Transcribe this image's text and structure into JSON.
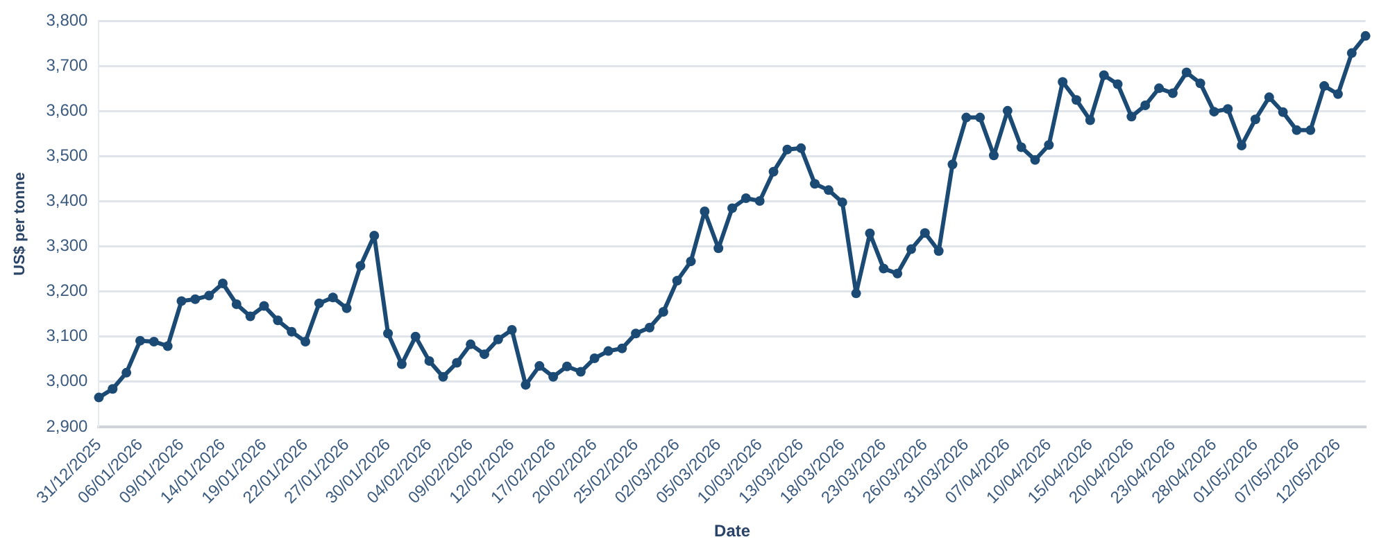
{
  "chart_data": {
    "type": "line",
    "xlabel": "Date",
    "ylabel": "US$ per tonne",
    "categories": [
      "31/12/2025",
      null,
      null,
      "06/01/2026",
      null,
      null,
      "09/01/2026",
      null,
      null,
      "14/01/2026",
      null,
      null,
      "19/01/2026",
      null,
      null,
      "22/01/2026",
      null,
      null,
      "27/01/2026",
      null,
      null,
      "30/01/2026",
      null,
      null,
      "04/02/2026",
      null,
      null,
      "09/02/2026",
      null,
      null,
      "12/02/2026",
      null,
      null,
      "17/02/2026",
      null,
      null,
      "20/02/2026",
      null,
      null,
      "25/02/2026",
      null,
      null,
      "02/03/2026",
      null,
      null,
      "05/03/2026",
      null,
      null,
      "10/03/2026",
      null,
      null,
      "13/03/2026",
      null,
      null,
      "18/03/2026",
      null,
      null,
      "23/03/2026",
      null,
      null,
      "26/03/2026",
      null,
      null,
      "31/03/2026",
      null,
      null,
      "07/04/2026",
      null,
      null,
      "10/04/2026",
      null,
      null,
      "15/04/2026",
      null,
      null,
      "20/04/2026",
      null,
      null,
      "23/04/2026",
      null,
      null,
      "28/04/2026",
      null,
      null,
      "01/05/2026",
      null,
      null,
      "07/05/2026",
      null,
      null,
      "12/05/2026",
      null,
      null
    ],
    "series": [
      {
        "color": "#1b4a74",
        "values": [
          2965,
          2984,
          3020,
          3091,
          3089,
          3079,
          3179,
          3183,
          3191,
          3218,
          3172,
          3145,
          3168,
          3136,
          3111,
          3089,
          3174,
          3187,
          3163,
          3257,
          3324,
          3107,
          3039,
          3100,
          3046,
          3011,
          3042,
          3083,
          3061,
          3094,
          3115,
          2993,
          3035,
          3011,
          3034,
          3022,
          3052,
          3068,
          3074,
          3107,
          3120,
          3155,
          3224,
          3267,
          3378,
          3296,
          3385,
          3407,
          3401,
          3466,
          3515,
          3518,
          3439,
          3425,
          3398,
          3196,
          3329,
          3251,
          3240,
          3294,
          3330,
          3290,
          3482,
          3586,
          3586,
          3502,
          3601,
          3520,
          3492,
          3525,
          3665,
          3625,
          3580,
          3680,
          3660,
          3588,
          3613,
          3651,
          3640,
          3686,
          3662,
          3599,
          3605,
          3524,
          3582,
          3631,
          3598,
          3558,
          3558,
          3656,
          3638,
          3729,
          3767
        ]
      }
    ],
    "ylim": [
      2900,
      3800
    ],
    "yticks": [
      {
        "value": 2900,
        "label": "2,900"
      },
      {
        "value": 3000,
        "label": "3,000"
      },
      {
        "value": 3100,
        "label": "3,100"
      },
      {
        "value": 3200,
        "label": "3,200"
      },
      {
        "value": 3300,
        "label": "3,300"
      },
      {
        "value": 3400,
        "label": "3,400"
      },
      {
        "value": 3500,
        "label": "3,500"
      },
      {
        "value": 3600,
        "label": "3,600"
      },
      {
        "value": 3700,
        "label": "3,700"
      },
      {
        "value": 3800,
        "label": "3,800"
      }
    ],
    "grid": "y",
    "marker": "circle",
    "line_style": "solid"
  }
}
